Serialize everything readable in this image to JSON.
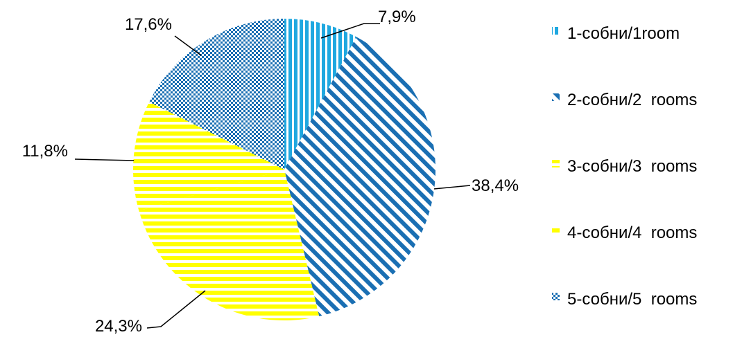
{
  "chart_data": {
    "type": "pie",
    "title": "",
    "slices": [
      {
        "name": "1-собни/1room",
        "value": 7.9,
        "label": "7,9%",
        "pattern": "vertical-stripes",
        "color": "#1fa8e0"
      },
      {
        "name": "2-собни/2  rooms",
        "value": 38.4,
        "label": "38,4%",
        "pattern": "diagonal-stripes",
        "color": "#1a6fb3"
      },
      {
        "name": "3-собни/3  rooms",
        "value": 24.3,
        "label": "24,3%",
        "pattern": "horizontal-stripes",
        "color": "#ffff00"
      },
      {
        "name": "4-собни/4  rooms",
        "value": 11.8,
        "label": "11,8%",
        "pattern": "horizontal-stripes",
        "color": "#ffff00"
      },
      {
        "name": "5-собни/5  rooms",
        "value": 17.6,
        "label": "17,6%",
        "pattern": "checker",
        "color": "#1a6fb3"
      }
    ],
    "legend_position": "right",
    "start_angle_deg": 0,
    "direction": "clockwise"
  }
}
